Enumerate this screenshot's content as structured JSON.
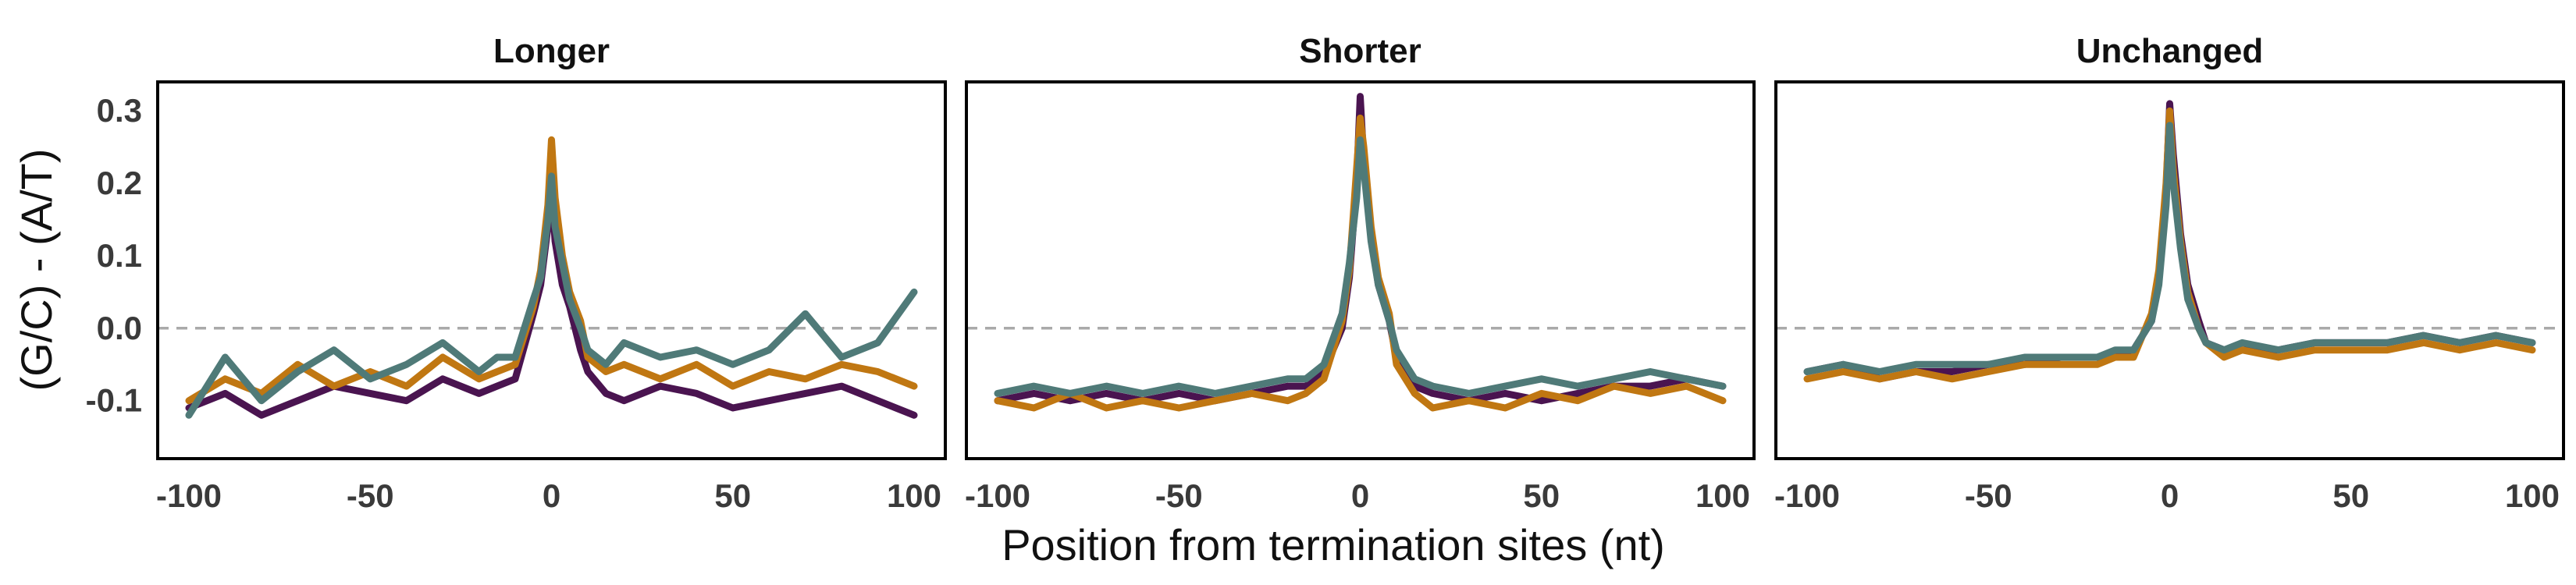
{
  "chart_data": {
    "type": "line",
    "ylabel": "(G/C) - (A/T)",
    "xlabel": "Position from termination sites (nt)",
    "xlim": [
      -100,
      100
    ],
    "ylim": [
      -0.18,
      0.34
    ],
    "x_ticks": [
      -100,
      -50,
      0,
      50,
      100
    ],
    "x_tick_labels": [
      "-100",
      "-50",
      "0",
      "50",
      "100"
    ],
    "y_ticks": [
      -0.1,
      0.0,
      0.1,
      0.2,
      0.3
    ],
    "y_tick_labels": [
      "-0.1",
      "0.0",
      "0.1",
      "0.2",
      "0.3"
    ],
    "reference_line": {
      "y": 0,
      "style": "dashed",
      "color": "#aaaaaa"
    },
    "grid": false,
    "series_colors": [
      "#4a1450",
      "#c07712",
      "#4f7a78"
    ],
    "panels": [
      {
        "title": "Longer",
        "x": [
          -100,
          -90,
          -80,
          -70,
          -60,
          -50,
          -40,
          -30,
          -20,
          -15,
          -10,
          -5,
          -3,
          -1,
          0,
          1,
          3,
          5,
          8,
          10,
          15,
          20,
          30,
          40,
          50,
          60,
          70,
          80,
          90,
          100
        ],
        "series": [
          {
            "values": [
              -0.11,
              -0.09,
              -0.12,
              -0.1,
              -0.08,
              -0.09,
              -0.1,
              -0.07,
              -0.09,
              -0.08,
              -0.07,
              0.02,
              0.06,
              0.14,
              0.19,
              0.12,
              0.06,
              0.03,
              -0.03,
              -0.06,
              -0.09,
              -0.1,
              -0.08,
              -0.09,
              -0.11,
              -0.1,
              -0.09,
              -0.08,
              -0.1,
              -0.12
            ]
          },
          {
            "values": [
              -0.1,
              -0.07,
              -0.09,
              -0.05,
              -0.08,
              -0.06,
              -0.08,
              -0.04,
              -0.07,
              -0.06,
              -0.05,
              0.03,
              0.08,
              0.17,
              0.26,
              0.18,
              0.1,
              0.05,
              0.01,
              -0.04,
              -0.06,
              -0.05,
              -0.07,
              -0.05,
              -0.08,
              -0.06,
              -0.07,
              -0.05,
              -0.06,
              -0.08
            ]
          },
          {
            "values": [
              -0.12,
              -0.04,
              -0.1,
              -0.06,
              -0.03,
              -0.07,
              -0.05,
              -0.02,
              -0.06,
              -0.04,
              -0.04,
              0.04,
              0.07,
              0.15,
              0.21,
              0.14,
              0.09,
              0.04,
              0.0,
              -0.03,
              -0.05,
              -0.02,
              -0.04,
              -0.03,
              -0.05,
              -0.03,
              0.02,
              -0.04,
              -0.02,
              0.05
            ]
          }
        ]
      },
      {
        "title": "Shorter",
        "x": [
          -100,
          -90,
          -80,
          -70,
          -60,
          -50,
          -40,
          -30,
          -20,
          -15,
          -10,
          -5,
          -3,
          -1,
          0,
          1,
          3,
          5,
          8,
          10,
          15,
          20,
          30,
          40,
          50,
          60,
          70,
          80,
          90,
          100
        ],
        "series": [
          {
            "values": [
              -0.1,
              -0.09,
              -0.1,
              -0.09,
              -0.1,
              -0.09,
              -0.1,
              -0.09,
              -0.08,
              -0.08,
              -0.06,
              0.0,
              0.07,
              0.2,
              0.32,
              0.23,
              0.13,
              0.06,
              0.01,
              -0.04,
              -0.08,
              -0.09,
              -0.1,
              -0.09,
              -0.1,
              -0.09,
              -0.08,
              -0.08,
              -0.07,
              -0.08
            ]
          },
          {
            "values": [
              -0.1,
              -0.11,
              -0.09,
              -0.11,
              -0.1,
              -0.11,
              -0.1,
              -0.09,
              -0.1,
              -0.09,
              -0.07,
              0.01,
              0.08,
              0.22,
              0.29,
              0.25,
              0.14,
              0.07,
              0.02,
              -0.05,
              -0.09,
              -0.11,
              -0.1,
              -0.11,
              -0.09,
              -0.1,
              -0.08,
              -0.09,
              -0.08,
              -0.1
            ]
          },
          {
            "values": [
              -0.09,
              -0.08,
              -0.09,
              -0.08,
              -0.09,
              -0.08,
              -0.09,
              -0.08,
              -0.07,
              -0.07,
              -0.05,
              0.02,
              0.09,
              0.18,
              0.26,
              0.22,
              0.12,
              0.06,
              0.01,
              -0.03,
              -0.07,
              -0.08,
              -0.09,
              -0.08,
              -0.07,
              -0.08,
              -0.07,
              -0.06,
              -0.07,
              -0.08
            ]
          }
        ]
      },
      {
        "title": "Unchanged",
        "x": [
          -100,
          -90,
          -80,
          -70,
          -60,
          -50,
          -40,
          -30,
          -20,
          -15,
          -10,
          -5,
          -3,
          -1,
          0,
          1,
          3,
          5,
          8,
          10,
          15,
          20,
          30,
          40,
          50,
          60,
          70,
          80,
          90,
          100
        ],
        "series": [
          {
            "values": [
              -0.06,
              -0.05,
              -0.07,
              -0.06,
              -0.06,
              -0.05,
              -0.05,
              -0.04,
              -0.04,
              -0.04,
              -0.03,
              0.01,
              0.07,
              0.19,
              0.31,
              0.24,
              0.13,
              0.06,
              0.01,
              -0.02,
              -0.03,
              -0.03,
              -0.03,
              -0.02,
              -0.02,
              -0.02,
              -0.01,
              -0.02,
              -0.01,
              -0.02
            ]
          },
          {
            "values": [
              -0.07,
              -0.06,
              -0.07,
              -0.06,
              -0.07,
              -0.06,
              -0.05,
              -0.05,
              -0.05,
              -0.04,
              -0.04,
              0.02,
              0.08,
              0.2,
              0.3,
              0.22,
              0.12,
              0.05,
              0.0,
              -0.02,
              -0.04,
              -0.03,
              -0.04,
              -0.03,
              -0.03,
              -0.03,
              -0.02,
              -0.03,
              -0.02,
              -0.03
            ]
          },
          {
            "values": [
              -0.06,
              -0.05,
              -0.06,
              -0.05,
              -0.05,
              -0.05,
              -0.04,
              -0.04,
              -0.04,
              -0.03,
              -0.03,
              0.01,
              0.06,
              0.17,
              0.28,
              0.2,
              0.11,
              0.04,
              0.0,
              -0.02,
              -0.03,
              -0.02,
              -0.03,
              -0.02,
              -0.02,
              -0.02,
              -0.01,
              -0.02,
              -0.01,
              -0.02
            ]
          }
        ]
      }
    ]
  }
}
